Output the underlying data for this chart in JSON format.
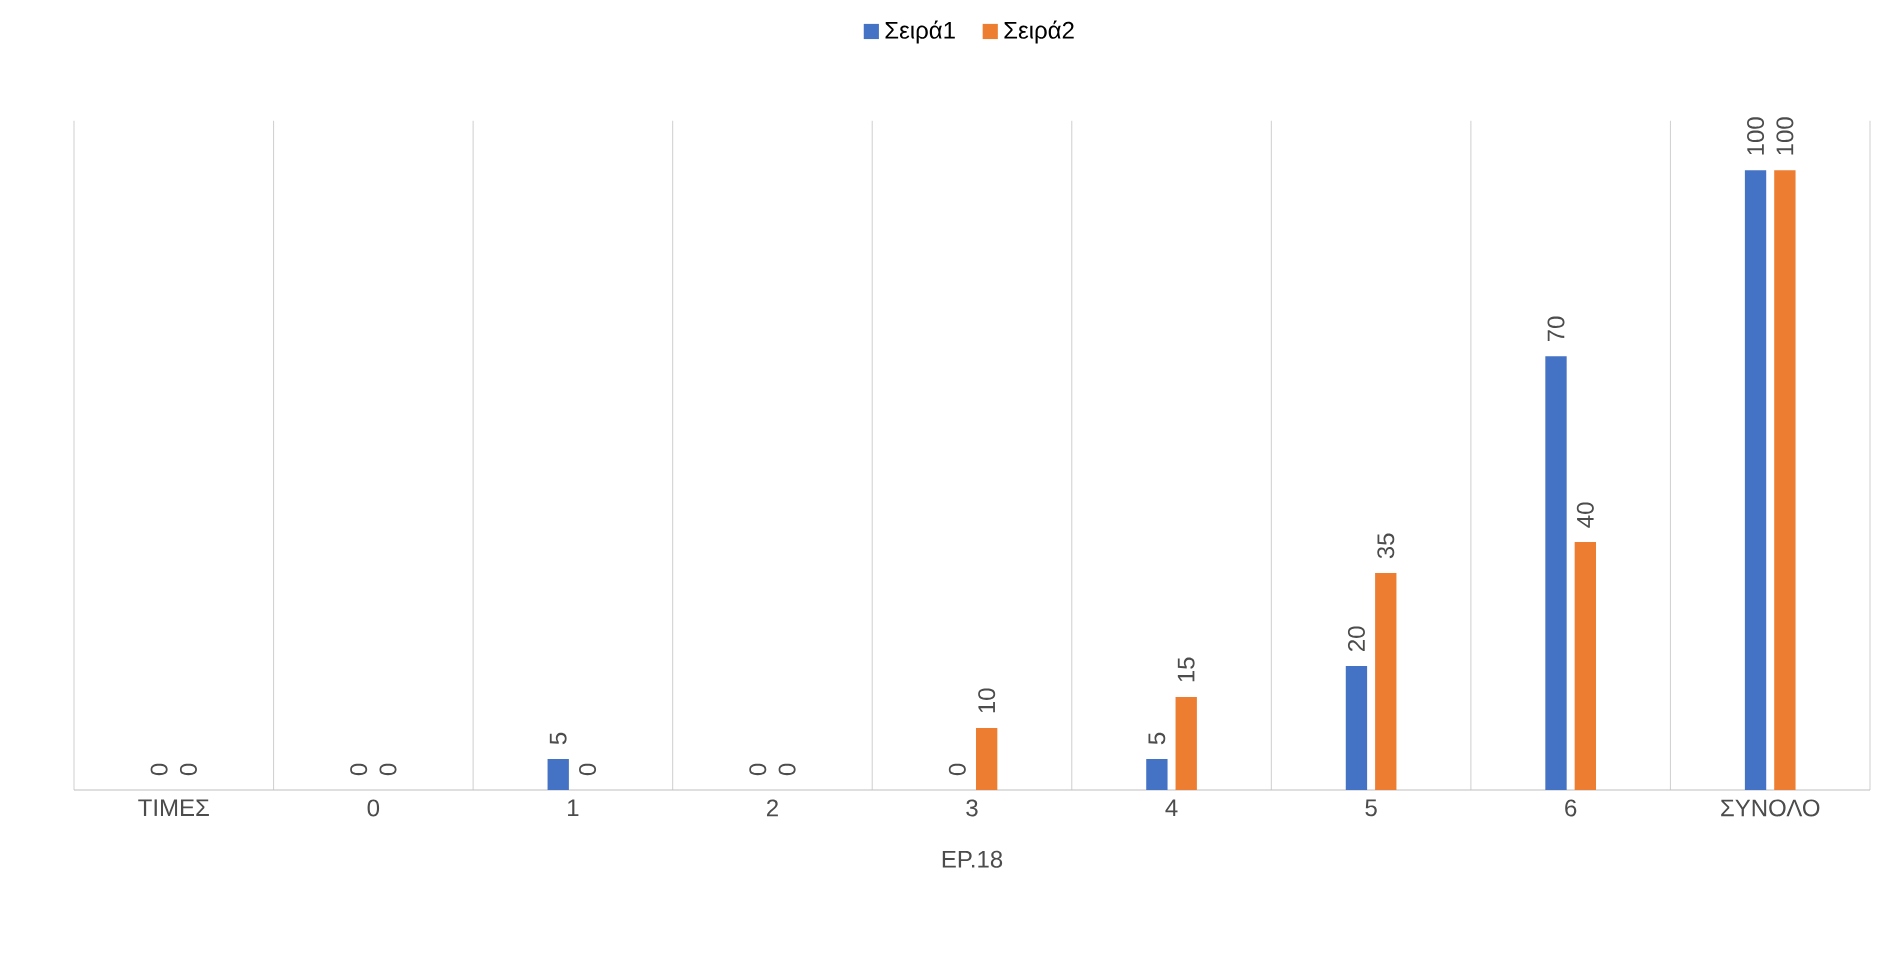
{
  "chart_data": {
    "type": "bar",
    "xlabel": "ΕΡ.18",
    "categories": [
      "ΤΙΜΕΣ",
      "0",
      "1",
      "2",
      "3",
      "4",
      "5",
      "6",
      "ΣΥΝΟΛΟ"
    ],
    "series": [
      {
        "name": "Σειρά1",
        "color": "#4472c4",
        "values": [
          0,
          0,
          5,
          0,
          0,
          5,
          20,
          70,
          100
        ]
      },
      {
        "name": "Σειρά2",
        "color": "#ed7d31",
        "values": [
          0,
          0,
          0,
          0,
          10,
          15,
          35,
          40,
          100
        ]
      }
    ],
    "data_labels": true,
    "legend": "top",
    "grid": "x"
  }
}
